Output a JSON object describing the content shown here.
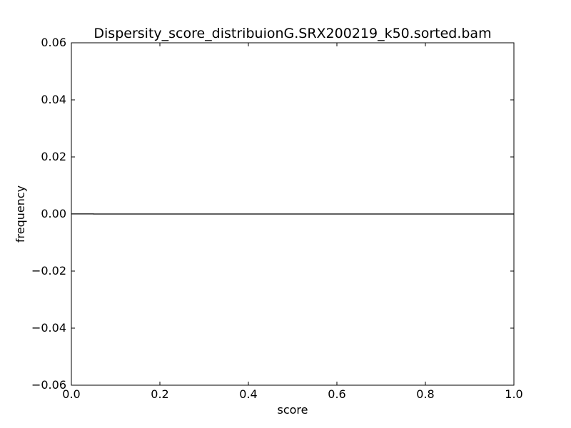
{
  "chart_data": {
    "type": "line",
    "title": "Dispersity_score_distribuionG.SRX200219_k50.sorted.bam",
    "xlabel": "score",
    "ylabel": "frequency",
    "xlim": [
      0.0,
      1.0
    ],
    "ylim": [
      -0.06,
      0.06
    ],
    "xticks": [
      "0.0",
      "0.2",
      "0.4",
      "0.6",
      "0.8",
      "1.0"
    ],
    "yticks": [
      "0.06",
      "0.04",
      "0.02",
      "0.00",
      "−0.02",
      "−0.04",
      "−0.06"
    ],
    "grid": false,
    "legend": "none",
    "series": [
      {
        "color": "#000000",
        "x": [
          0.0,
          0.05,
          0.05,
          1.0
        ],
        "y": [
          3e-05,
          3e-05,
          0.0,
          0.0
        ]
      }
    ]
  }
}
